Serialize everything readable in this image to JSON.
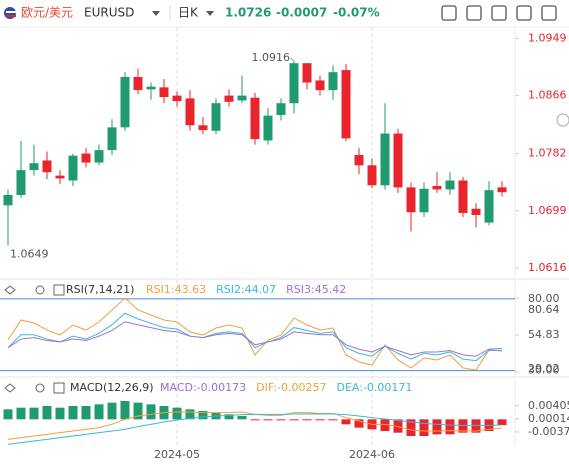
{
  "header": {
    "pair": "欧元/美元",
    "symbol": "EURUSD",
    "period": "日K",
    "price": "1.0726",
    "change": "-0.0007",
    "change_pct": "-0.07%"
  },
  "chart_data": [
    {
      "type": "candlestick",
      "up_color": "#1f9b6f",
      "down_color": "#e8242c",
      "x": [
        null,
        null,
        null,
        null,
        null,
        null,
        null,
        null,
        null,
        null,
        null,
        null,
        null,
        "2024-05",
        null,
        null,
        null,
        null,
        null,
        null,
        null,
        null,
        null,
        null,
        null,
        null,
        null,
        null,
        "2024-06",
        null,
        null,
        null,
        null,
        null,
        null,
        null,
        null,
        null,
        null
      ],
      "open": [
        1.0707,
        1.0722,
        1.0758,
        1.0772,
        1.075,
        1.0743,
        1.0782,
        1.0769,
        1.0787,
        1.082,
        1.0893,
        1.0875,
        1.0878,
        1.0866,
        1.0862,
        1.0823,
        1.0815,
        1.0866,
        1.0859,
        1.0863,
        1.0801,
        1.0838,
        1.0855,
        1.0913,
        1.0888,
        1.0874,
        1.0903,
        1.078,
        1.0765,
        1.0736,
        1.0811,
        1.0733,
        1.0697,
        1.0735,
        1.073,
        1.0743,
        1.0702,
        1.0682,
        1.0733
      ],
      "high": [
        1.073,
        1.08,
        1.0795,
        1.0785,
        1.0758,
        1.0782,
        1.079,
        1.0795,
        1.0832,
        1.09,
        1.0905,
        1.0885,
        1.089,
        1.0872,
        1.0874,
        1.0835,
        1.0862,
        1.0875,
        1.0895,
        1.087,
        1.0848,
        1.0862,
        1.0916,
        1.0912,
        1.0895,
        1.091,
        1.0912,
        1.079,
        1.0775,
        1.0855,
        1.0818,
        1.074,
        1.074,
        1.0755,
        1.0755,
        1.0748,
        1.071,
        1.0742,
        1.0742
      ],
      "low": [
        1.0649,
        1.0718,
        1.075,
        1.0745,
        1.0738,
        1.0735,
        1.0762,
        1.0765,
        1.078,
        1.0815,
        1.0868,
        1.086,
        1.0855,
        1.085,
        1.0815,
        1.081,
        1.081,
        1.085,
        1.0855,
        1.0795,
        1.0795,
        1.083,
        1.084,
        1.0875,
        1.0866,
        1.086,
        1.08,
        1.0752,
        1.0732,
        1.073,
        1.0725,
        1.0669,
        1.069,
        1.0725,
        1.0722,
        1.069,
        1.0675,
        1.0678,
        1.072
      ],
      "close": [
        1.0722,
        1.0758,
        1.0768,
        1.0755,
        1.0746,
        1.0779,
        1.0769,
        1.0787,
        1.082,
        1.0893,
        1.0874,
        1.0879,
        1.0864,
        1.0858,
        1.0823,
        1.0816,
        1.0855,
        1.0857,
        1.0866,
        1.0803,
        1.0837,
        1.0855,
        1.0913,
        1.0885,
        1.0874,
        1.09,
        1.0804,
        1.0765,
        1.0736,
        1.0811,
        1.0733,
        1.0697,
        1.0731,
        1.073,
        1.0743,
        1.0696,
        1.0693,
        1.0729,
        1.0726
      ],
      "ylim": [
        1.0606,
        1.0964
      ],
      "yticks": [
        1.0949,
        1.0866,
        1.0782,
        1.0699,
        1.0616
      ],
      "max_label": "1.0916",
      "min_label": "1.0649"
    },
    {
      "type": "line",
      "title": "RSI(7,14,21)",
      "ylim": [
        29.02,
        80.64
      ],
      "yticks": [
        {
          "value": 80,
          "label": "80.00"
        },
        80.64,
        54.83,
        {
          "value": 30,
          "label": "30.00"
        },
        29.02
      ],
      "series": [
        {
          "name": "RSI1:43.63",
          "color": "#f0a040",
          "values": [
            51.3,
            65.3,
            63.2,
            58.3,
            54.8,
            61.8,
            58.3,
            63.9,
            72.3,
            80.64,
            72.3,
            68.8,
            65.3,
            63.9,
            56.9,
            54.8,
            59.7,
            61.8,
            59.7,
            40.9,
            51.3,
            54.8,
            66.7,
            61.8,
            58.3,
            59.7,
            40.9,
            36,
            33.9,
            47.9,
            37.4,
            31.8,
            38.8,
            37.4,
            40.9,
            31.8,
            30.4,
            44.4,
            43.63
          ]
        },
        {
          "name": "RSI2:44.07",
          "color": "#3cb8d8",
          "values": [
            46,
            55,
            55,
            52,
            50,
            54,
            52,
            56,
            62,
            70,
            66,
            63,
            60,
            59,
            54,
            53,
            56,
            57,
            56,
            46,
            50,
            53,
            60,
            58,
            56,
            57,
            46,
            42,
            40,
            47,
            42,
            38,
            42,
            41,
            43,
            38,
            37,
            44,
            44.07
          ]
        },
        {
          "name": "RSI3:45.42",
          "color": "#a070d0",
          "values": [
            46,
            52,
            53,
            51,
            50,
            52,
            51,
            54,
            58,
            64,
            62,
            60,
            58,
            57,
            54,
            53,
            55,
            56,
            55,
            48,
            50,
            52,
            57,
            56,
            55,
            55,
            48,
            45,
            43,
            47,
            44,
            41,
            43,
            43,
            44,
            41,
            40,
            45,
            45.42
          ]
        }
      ]
    },
    {
      "type": "macd",
      "title": "MACD(12,26,9)",
      "ylim": [
        -0.008,
        0.007
      ],
      "yticks": [
        0.00405,
        0.00014,
        -0.00377
      ],
      "up_color": "#1f9b6f",
      "down_color": "#e8242c",
      "series": [
        {
          "name": "MACD:-0.00173",
          "color": "#9a70d0",
          "kind": "bar",
          "values": [
            0.003,
            0.0035,
            0.0035,
            0.004,
            0.0035,
            0.004,
            0.004,
            0.0045,
            0.005,
            0.0055,
            0.005,
            0.0045,
            0.004,
            0.0035,
            0.003,
            0.0025,
            0.002,
            0.0015,
            0.001,
            -0.0002,
            -0.0002,
            -0.0002,
            -0.0002,
            -0.0002,
            -0.0003,
            -0.0003,
            -0.0015,
            -0.0025,
            -0.003,
            -0.0035,
            -0.004,
            -0.005,
            -0.005,
            -0.0045,
            -0.0045,
            -0.004,
            -0.004,
            -0.0035,
            -0.00173
          ]
        },
        {
          "name": "DIF:-0.00257",
          "color": "#f0a040",
          "kind": "line",
          "values": [
            -0.006,
            -0.0055,
            -0.005,
            -0.0045,
            -0.004,
            -0.0035,
            -0.003,
            -0.0025,
            -0.0015,
            0,
            0.001,
            0.0015,
            0.002,
            0.0022,
            0.0022,
            0.002,
            0.002,
            0.002,
            0.0022,
            0.0015,
            0.0012,
            0.0012,
            0.002,
            0.002,
            0.0018,
            0.0018,
            0.0005,
            -0.0005,
            -0.0015,
            -0.0015,
            -0.0022,
            -0.0032,
            -0.0035,
            -0.0035,
            -0.0034,
            -0.0035,
            -0.0035,
            -0.003,
            -0.00257
          ]
        },
        {
          "name": "DEA:-0.00171",
          "color": "#3cb8d8",
          "kind": "line",
          "values": [
            -0.0075,
            -0.007,
            -0.0065,
            -0.006,
            -0.0055,
            -0.005,
            -0.0045,
            -0.004,
            -0.0035,
            -0.003,
            -0.0022,
            -0.0015,
            -0.0008,
            -0.0002,
            0.0003,
            0.0007,
            0.001,
            0.0012,
            0.0014,
            0.0015,
            0.0015,
            0.0015,
            0.0016,
            0.0016,
            0.0016,
            0.0016,
            0.0014,
            0.001,
            0.0005,
            0.0001,
            -0.0003,
            -0.0008,
            -0.0012,
            -0.0015,
            -0.0017,
            -0.0018,
            -0.0018,
            -0.0018,
            -0.00171
          ]
        }
      ]
    }
  ]
}
